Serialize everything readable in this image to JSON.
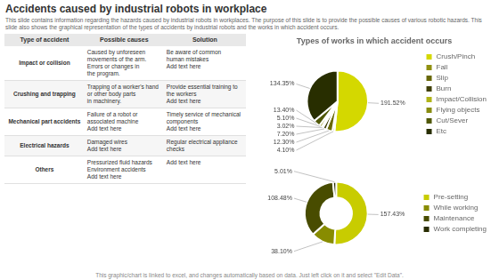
{
  "title": "Accidents caused by industrial robots in workplace",
  "subtitle": "This slide contains information regarding the hazards caused by industrial robots in workplaces. The purpose of this slide is to provide the possible causes of various robotic hazards. This slide also shows the graphical representation of the types of accidents by industrial robots and the works in which accident occurs.",
  "table": {
    "columns": [
      "Type of accident",
      "Possible causes",
      "Solution"
    ],
    "rows": [
      [
        "Impact or collision",
        "Caused by unforeseen\nmovements of the arm.\nErrors or changes in\nthe program.",
        "Be aware of common\nhuman mistakes\nAdd text here"
      ],
      [
        "Crushing and trapping",
        "Trapping of a worker's hand\nor other body parts\nin machinery.",
        "Provide essential training to\nthe workers\nAdd text here"
      ],
      [
        "Mechanical part accidents",
        "Failure of a robot or\nassociated machine\nAdd text here",
        "Timely service of mechanical\ncomponents\nAdd text here"
      ],
      [
        "Electrical hazards",
        "Damaged wires\nAdd text here",
        "Regular electrical appliance\nchecks"
      ],
      [
        "Others",
        "Pressurized fluid hazards\nEnvironment accidents\nAdd text here",
        "Add text here"
      ]
    ]
  },
  "footer": "This graphic/chart is linked to excel, and changes automatically based on data. Just left click on it and select \"Edit Data\".",
  "chart_data": [
    {
      "type": "pie",
      "title": "Types of works in which accident occurs",
      "categories": [
        "Crush/Pinch",
        "Fall",
        "Slip",
        "Burn",
        "Impact/Collision",
        "Flying objects",
        "Cut/Sever",
        "Etc"
      ],
      "values": [
        191.52,
        4.1,
        12.3,
        7.2,
        3.02,
        5.1,
        13.4,
        134.35
      ],
      "value_labels": [
        "191.52%",
        "4.10%",
        "12.30%",
        "7.20%",
        "3.02%",
        "5.10%",
        "13.40%",
        "134.35%"
      ],
      "colors": [
        "#d4d800",
        "#909010",
        "#686808",
        "#404008",
        "#b0b418",
        "#888c10",
        "#505808",
        "#282e00"
      ],
      "data_labels": true,
      "legend": "right"
    },
    {
      "type": "doughnut",
      "categories": [
        "Pre-setting",
        "While working",
        "Maintenance",
        "Work completing"
      ],
      "values": [
        157.43,
        38.1,
        108.48,
        5.01
      ],
      "value_labels": [
        "157.43%",
        "38.10%",
        "108.48%",
        "5.01%"
      ],
      "colors": [
        "#c8cc00",
        "#888c00",
        "#484c00",
        "#282c00"
      ],
      "data_labels": true,
      "legend": "right"
    }
  ]
}
